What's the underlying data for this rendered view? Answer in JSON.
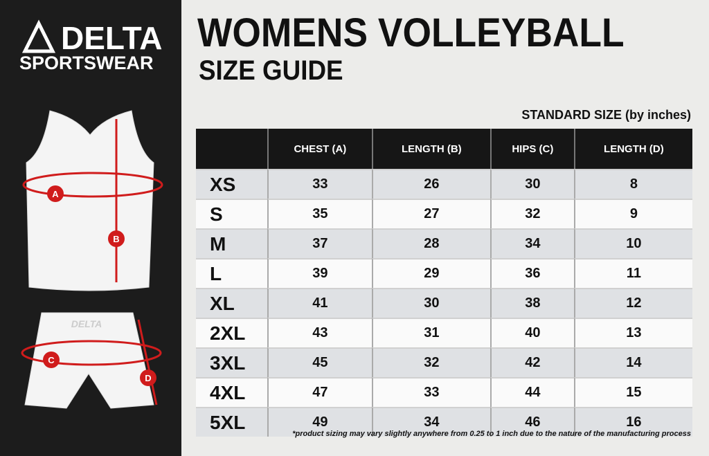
{
  "brand": {
    "name": "DELTA",
    "tagline": "SPORTSWEAR"
  },
  "header": {
    "title": "WOMENS VOLLEYBALL",
    "subtitle": "SIZE GUIDE"
  },
  "diagram": {
    "labels": [
      "A",
      "B",
      "C",
      "D"
    ],
    "shorts_logo": "DELTA"
  },
  "table": {
    "caption": "STANDARD SIZE (by inches)",
    "columns": [
      "CHEST (A)",
      "LENGTH (B)",
      "HIPS (C)",
      "LENGTH (D)"
    ],
    "rows": [
      [
        "XS",
        33,
        26,
        30,
        8
      ],
      [
        "S",
        35,
        27,
        32,
        9
      ],
      [
        "M",
        37,
        28,
        34,
        10
      ],
      [
        "L",
        39,
        29,
        36,
        11
      ],
      [
        "XL",
        41,
        30,
        38,
        12
      ],
      [
        "2XL",
        43,
        31,
        40,
        13
      ],
      [
        "3XL",
        45,
        32,
        42,
        14
      ],
      [
        "4XL",
        47,
        33,
        44,
        15
      ],
      [
        "5XL",
        49,
        34,
        46,
        16
      ]
    ]
  },
  "footnote": "*product sizing may vary slightly anywhere from 0.25 to 1 inch due to the nature of the manufacturing process"
}
